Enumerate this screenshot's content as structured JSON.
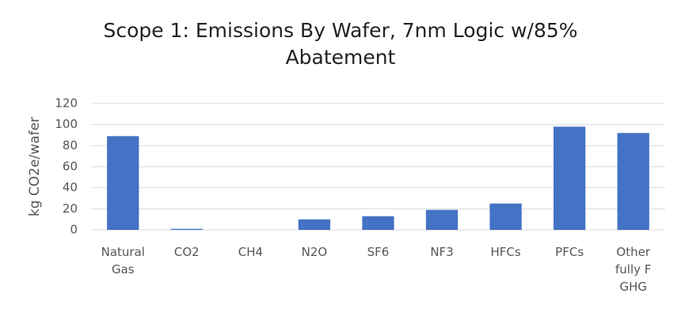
{
  "chart_data": {
    "type": "bar",
    "title": "Scope 1: Emissions By Wafer, 7nm Logic w/85% Abatement",
    "y_label": "kg CO2e/wafer",
    "categories": [
      "Natural Gas",
      "CO2",
      "CH4",
      "N2O",
      "SF6",
      "NF3",
      "HFCs",
      "PFCs",
      "Other fully F GHG"
    ],
    "values": [
      89,
      1,
      0,
      10,
      13,
      19,
      25,
      98,
      92
    ],
    "color": "#4472c4",
    "ylim": [
      0,
      120
    ],
    "yticks": [
      0,
      20,
      40,
      60,
      80,
      100,
      120
    ],
    "grid": true
  }
}
